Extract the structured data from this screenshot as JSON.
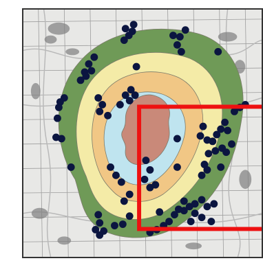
{
  "map": {
    "colors": {
      "basemap": "#e8e8e6",
      "grid": "#9c9c9c",
      "road": "#b9b9b9",
      "water": "#7f7f7f",
      "zone_outer": "#6f9a57",
      "zone_2": "#f4eba7",
      "zone_3": "#f1c785",
      "zone_4": "#bfe4ef",
      "zone_core": "#c98979",
      "zone_stroke": "#7a7a6a",
      "points": "#0b1540",
      "highlight_box": "#ee1111",
      "frame": "#333333"
    },
    "zones": [
      {
        "name": "outer",
        "color_key": "zone_outer"
      },
      {
        "name": "ring-2",
        "color_key": "zone_2"
      },
      {
        "name": "ring-3",
        "color_key": "zone_3"
      },
      {
        "name": "ring-4",
        "color_key": "zone_4"
      },
      {
        "name": "core",
        "color_key": "zone_core"
      }
    ],
    "points_count": 92,
    "highlight_box_present": true
  }
}
